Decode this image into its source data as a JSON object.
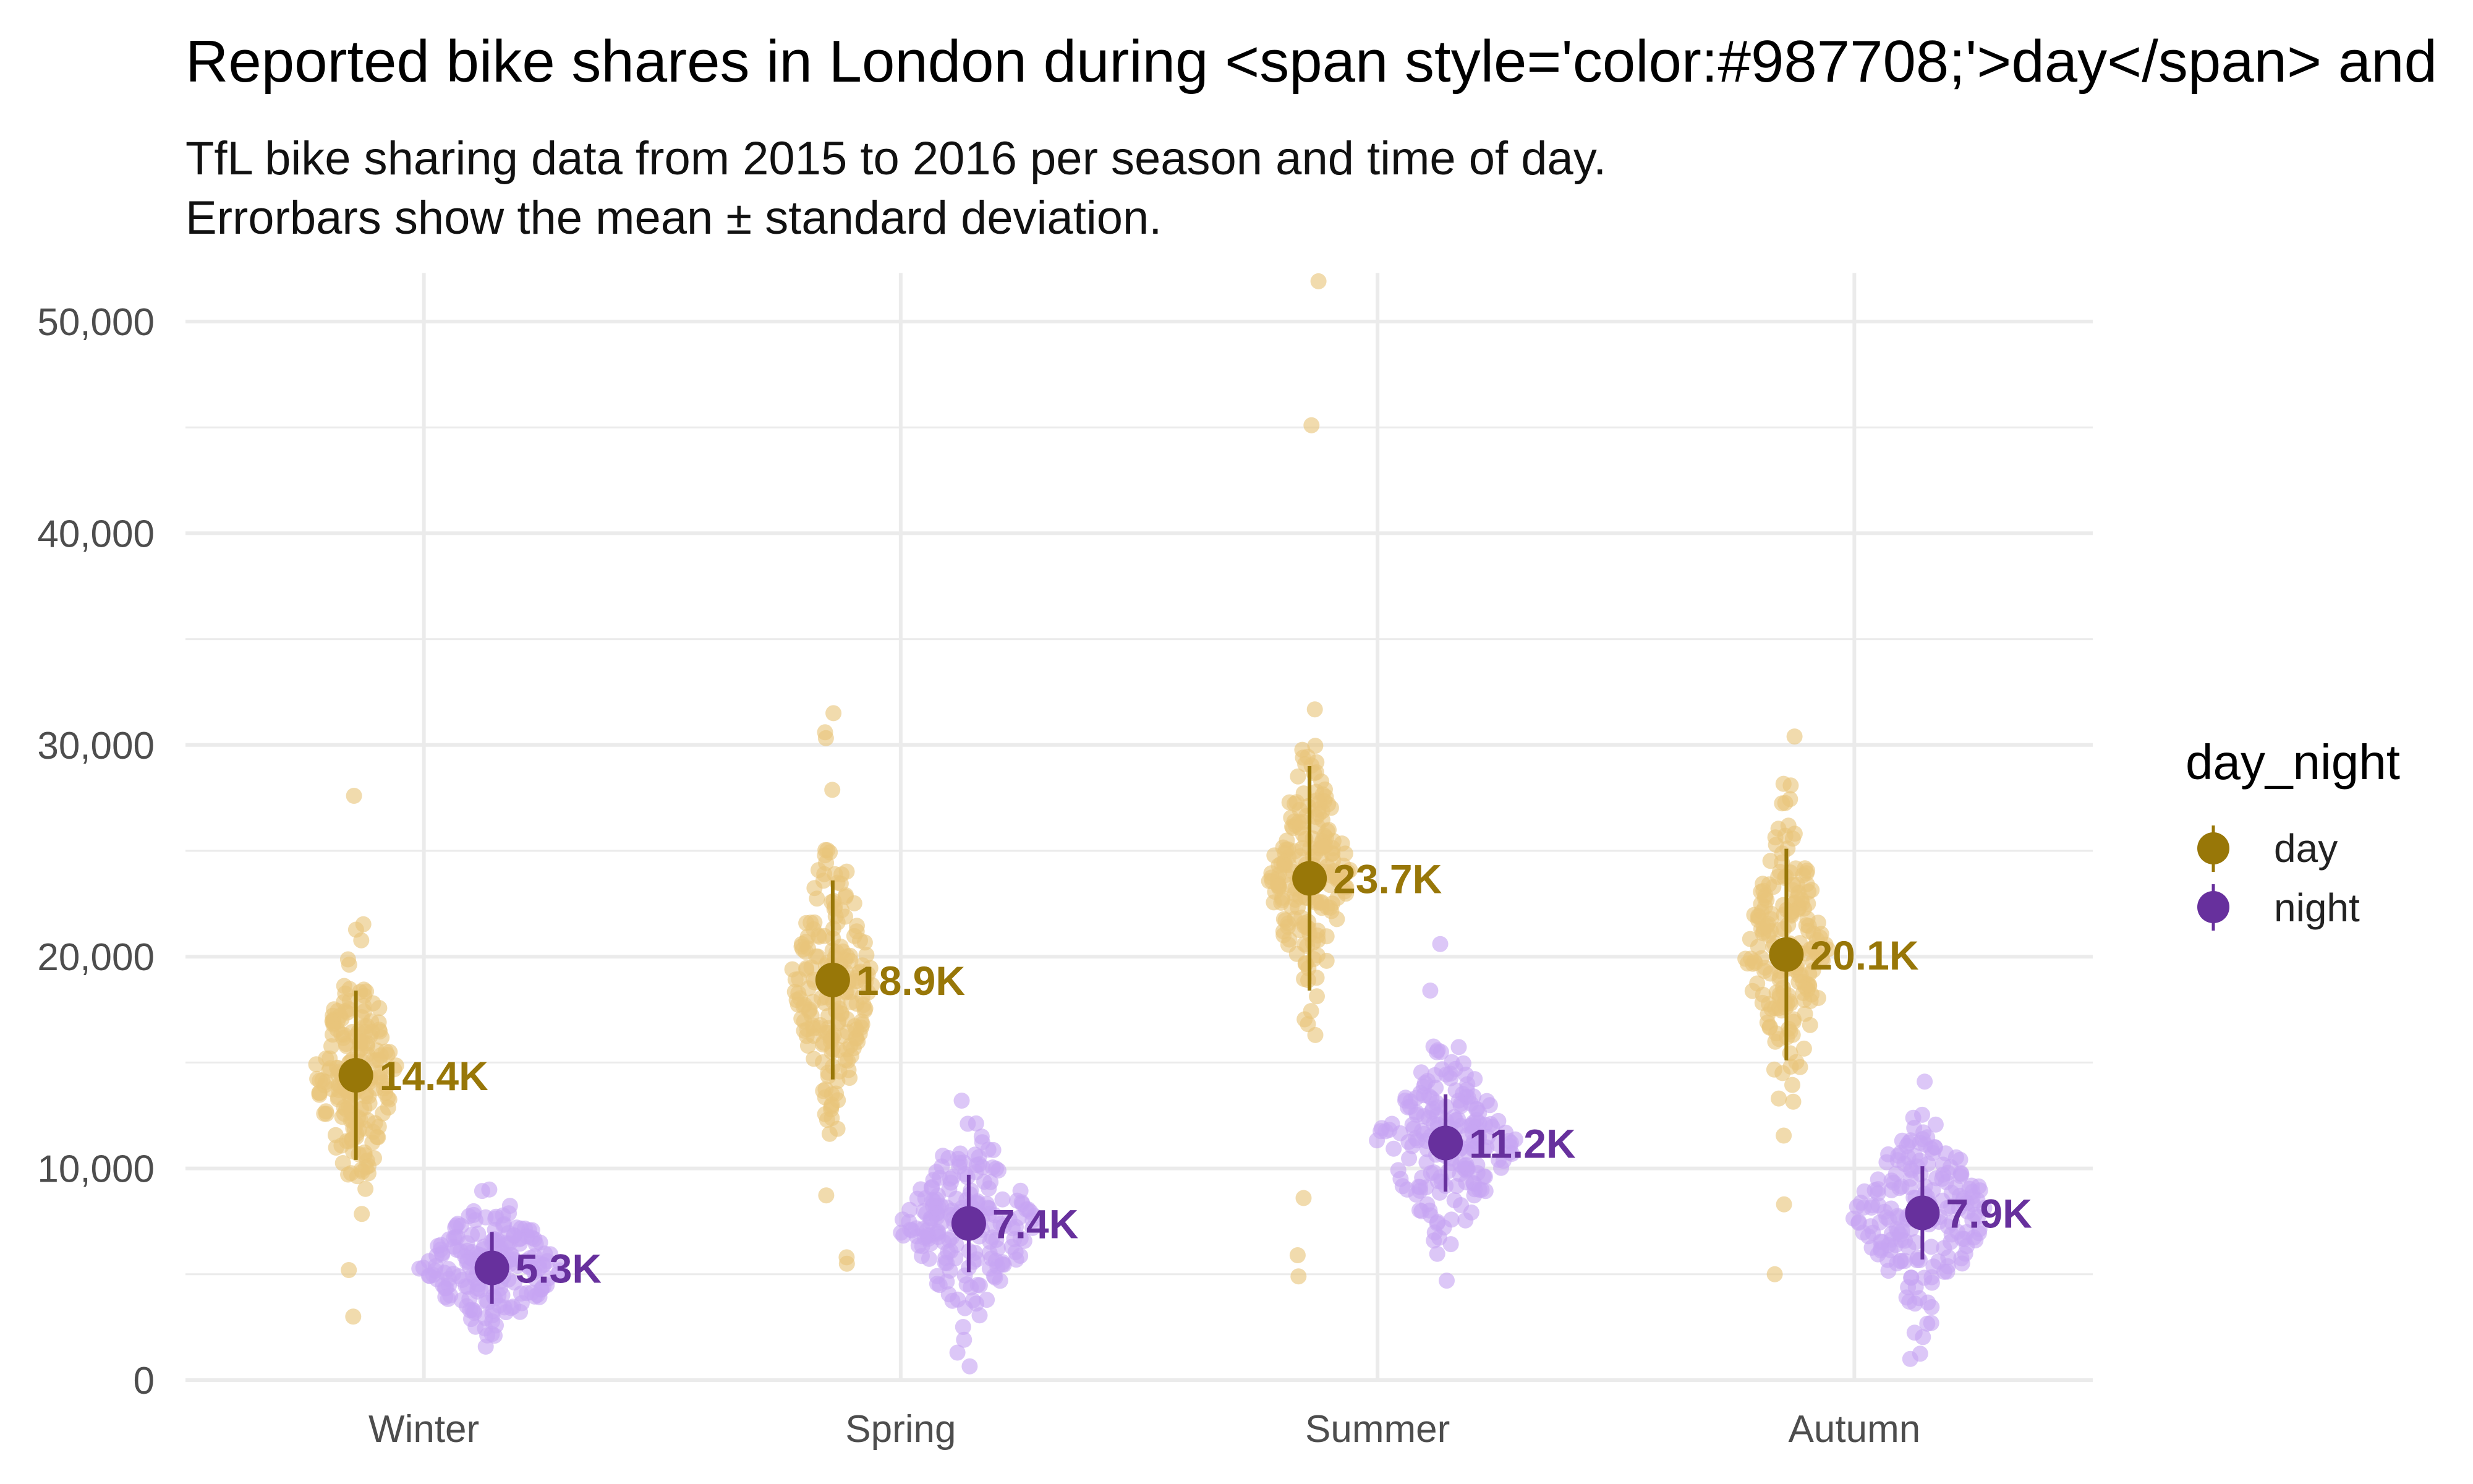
{
  "chart_data": {
    "type": "scatter",
    "title": "Reported bike shares in London during <span style='color:#987708;'>day</span> and",
    "subtitle_lines": [
      "TfL bike sharing data from 2015 to 2016 per season and time of day.",
      "Errorbars show the mean ± standard deviation."
    ],
    "xlabel": "",
    "ylabel": "",
    "categories": [
      "Winter",
      "Spring",
      "Summer",
      "Autumn"
    ],
    "ylim": [
      0,
      52000
    ],
    "y_ticks": [
      0,
      10000,
      20000,
      30000,
      40000,
      50000
    ],
    "y_tick_labels": [
      "0",
      "10,000",
      "20,000",
      "30,000",
      "40,000",
      "50,000"
    ],
    "grid": true,
    "legend": {
      "title": "day_night",
      "position": "right",
      "entries": [
        "day",
        "night"
      ]
    },
    "colors": {
      "day_point": "#e8c57a",
      "day_mean": "#987708",
      "night_point": "#c6a5f2",
      "night_mean": "#67309d",
      "grid": "#ebebeb"
    },
    "series": [
      {
        "name": "day",
        "means": [
          14400,
          18900,
          23700,
          20100
        ],
        "sd": [
          4000,
          4700,
          5300,
          5000
        ],
        "mean_labels": [
          "14.4K",
          "18.9K",
          "23.7K",
          "20.1K"
        ],
        "points": {
          "Winter": {
            "n": 190,
            "spread": 2700,
            "outliers": [
              27600,
              3000,
              5200
            ]
          },
          "Spring": {
            "n": 190,
            "spread": 3000,
            "outliers": [
              31500,
              30600,
              5500,
              5800
            ]
          },
          "Summer": {
            "n": 190,
            "spread": 2600,
            "outliers": [
              51900,
              45100,
              4900,
              5900,
              8600
            ]
          },
          "Autumn": {
            "n": 190,
            "spread": 3000,
            "outliers": [
              30400,
              5000,
              8300
            ]
          }
        }
      },
      {
        "name": "night",
        "means": [
          5300,
          7400,
          11200,
          7900
        ],
        "sd": [
          1700,
          2300,
          2300,
          2200
        ],
        "mean_labels": [
          "5.3K",
          "7.4K",
          "11.2K",
          "7.9K"
        ],
        "points": {
          "Winter": {
            "n": 190,
            "spread": 1500,
            "outliers": [
              9000,
              2100
            ]
          },
          "Spring": {
            "n": 190,
            "spread": 2000,
            "outliers": [
              13200,
              1300
            ]
          },
          "Summer": {
            "n": 190,
            "spread": 2000,
            "outliers": [
              20600,
              18400,
              4700
            ]
          },
          "Autumn": {
            "n": 190,
            "spread": 2000,
            "outliers": [
              14100,
              1000,
              2700
            ]
          }
        }
      }
    ]
  }
}
